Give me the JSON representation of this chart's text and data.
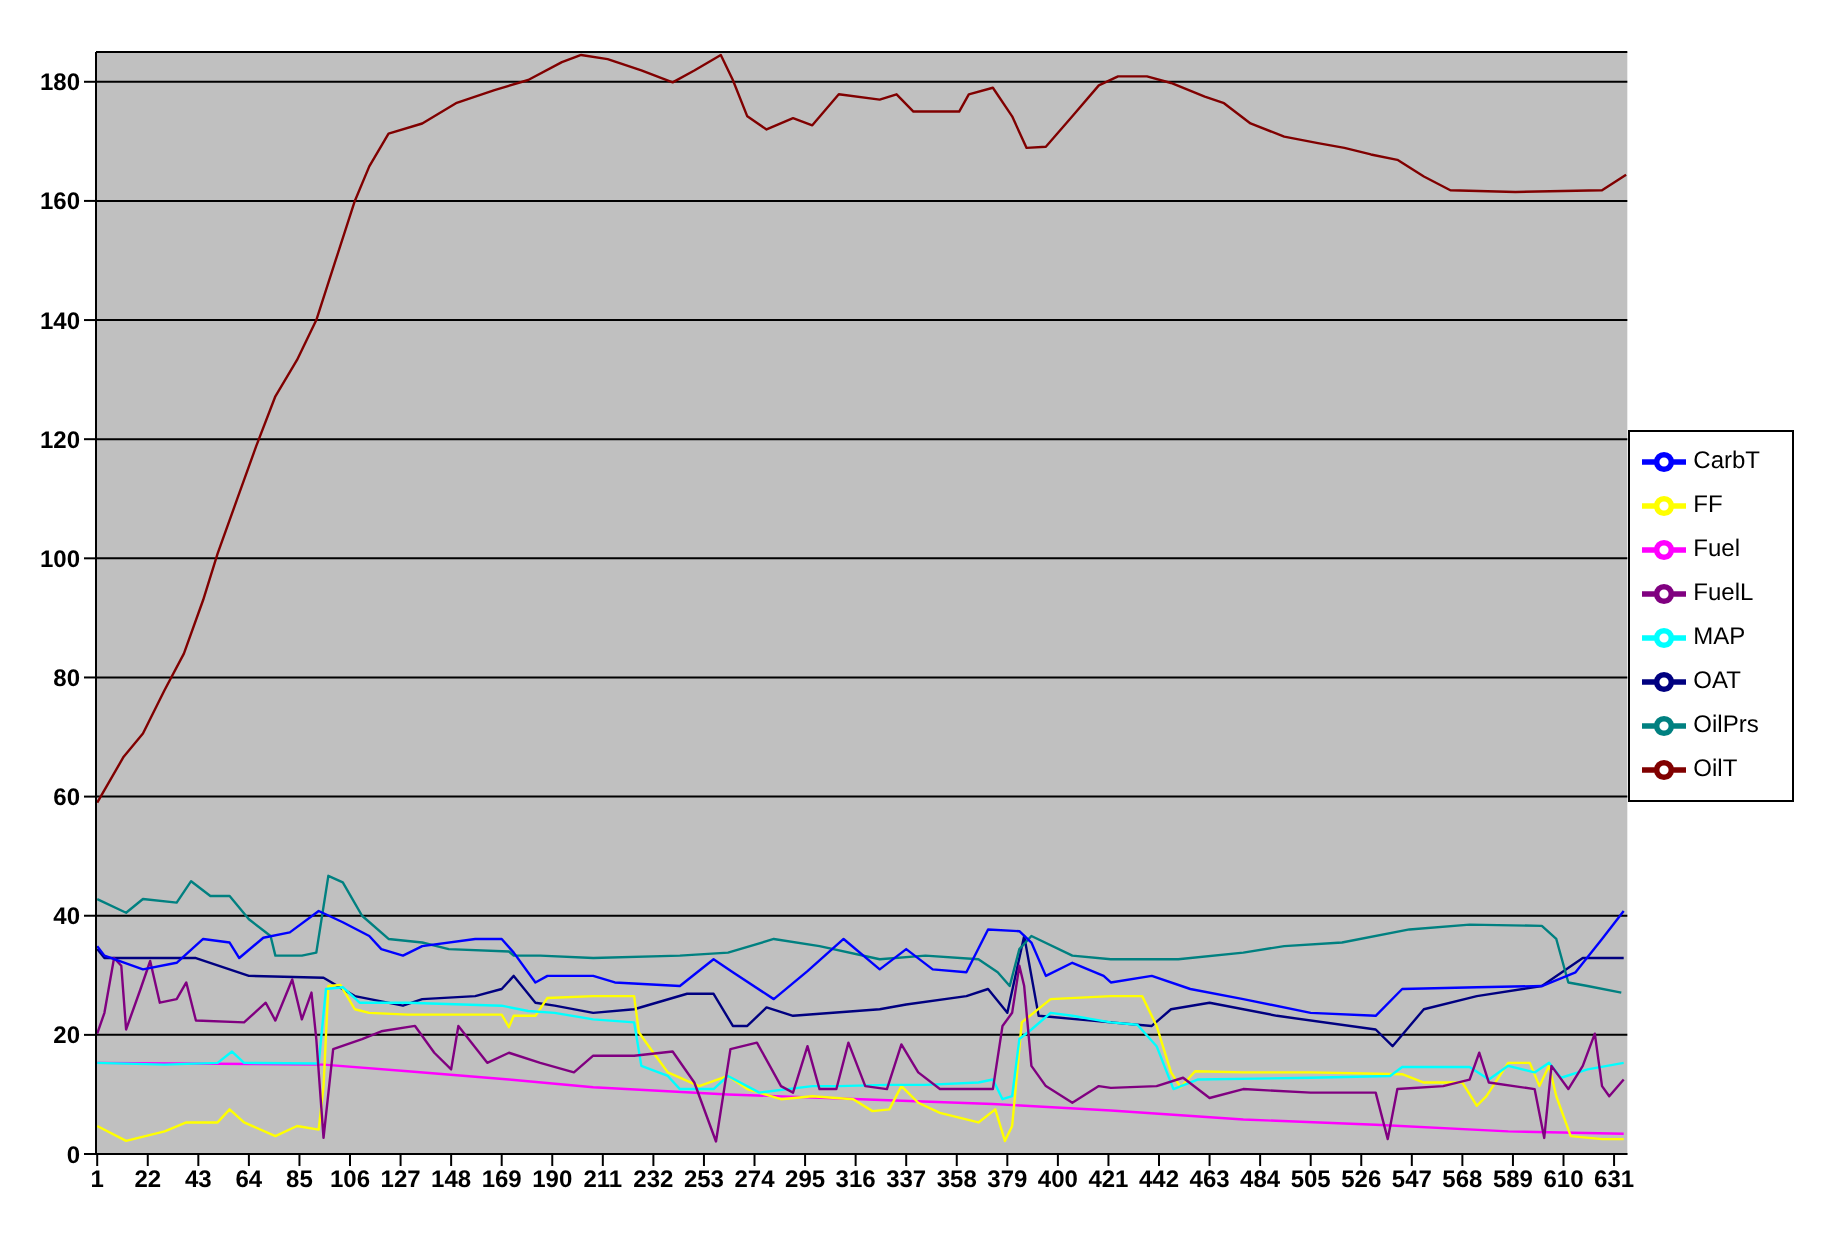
{
  "chart_data": {
    "type": "line",
    "xlim": [
      0.5,
      636.5
    ],
    "xticks": [
      1,
      22,
      43,
      64,
      85,
      106,
      127,
      148,
      169,
      190,
      211,
      232,
      253,
      274,
      295,
      316,
      337,
      358,
      379,
      400,
      421,
      442,
      463,
      484,
      505,
      526,
      547,
      568,
      589,
      610,
      631
    ],
    "ylim": [
      0,
      185
    ],
    "yticks": [
      0,
      20,
      40,
      60,
      80,
      100,
      120,
      140,
      160,
      180
    ],
    "grid": "y",
    "legend": "right",
    "marker": "none",
    "line_style": "solid",
    "series": [
      {
        "name": "OAT",
        "color": "#000080",
        "x": [
          1,
          4,
          42,
          64,
          95,
          108,
          128,
          136,
          158,
          169,
          174,
          183,
          191,
          207,
          224,
          246,
          257,
          265,
          271,
          279,
          290,
          326,
          337,
          362,
          371,
          379,
          386,
          392,
          422,
          439,
          447,
          463,
          491,
          532,
          539,
          552,
          574,
          601,
          618,
          635
        ],
        "values": [
          34.4,
          32.9,
          32.9,
          29.9,
          29.6,
          26.5,
          24.9,
          26,
          26.5,
          27.7,
          29.9,
          25.4,
          24.9,
          23.7,
          24.3,
          26.9,
          26.9,
          21.5,
          21.5,
          24.6,
          23.2,
          24.3,
          25.1,
          26.5,
          27.7,
          23.7,
          36.6,
          23.2,
          22.1,
          21.5,
          24.3,
          25.4,
          23.2,
          20.9,
          18.1,
          24.3,
          26.5,
          28.2,
          32.9,
          32.9
        ]
      },
      {
        "name": "Fuel",
        "color": "#ff00ff",
        "x": [
          1,
          64,
          95,
          130,
          172,
          207,
          263,
          318,
          373,
          422,
          477,
          532,
          587,
          635
        ],
        "values": [
          15.3,
          15.1,
          15,
          13.9,
          12.5,
          11.2,
          10,
          9.2,
          8.4,
          7.3,
          5.8,
          4.9,
          3.8,
          3.4
        ]
      },
      {
        "name": "FF",
        "color": "#ffff00",
        "x": [
          1,
          13,
          29,
          38,
          51,
          56,
          62,
          75,
          84,
          93,
          95,
          97,
          102,
          108,
          114,
          130,
          169,
          172,
          174,
          183,
          188,
          207,
          224,
          226,
          232,
          238,
          251,
          263,
          271,
          285,
          298,
          315,
          323,
          330,
          335,
          342,
          351,
          367,
          374,
          378,
          381,
          385,
          397,
          422,
          435,
          441,
          447,
          451,
          457,
          477,
          505,
          543,
          552,
          568,
          574,
          578,
          587,
          596,
          600,
          604,
          607,
          613,
          626,
          635
        ],
        "values": [
          4.7,
          2.2,
          3.8,
          5.3,
          5.3,
          7.5,
          5.3,
          3,
          4.7,
          4.1,
          11.4,
          28.2,
          28.4,
          24.3,
          23.7,
          23.4,
          23.4,
          21.3,
          23.2,
          23.2,
          26.2,
          26.5,
          26.5,
          20.4,
          17,
          13.7,
          11.4,
          13.1,
          10.9,
          9.2,
          9.7,
          9.2,
          7.2,
          7.5,
          11.4,
          8.6,
          6.9,
          5.3,
          7.5,
          2.2,
          4.7,
          22.1,
          26,
          26.5,
          26.5,
          21.5,
          13.7,
          11.2,
          13.9,
          13.7,
          13.7,
          13.4,
          12,
          12,
          8.1,
          9.7,
          15.3,
          15.3,
          11.4,
          14.8,
          9.7,
          3,
          2.5,
          2.5
        ]
      },
      {
        "name": "MAP",
        "color": "#00ffff",
        "x": [
          1,
          29,
          51,
          57,
          62,
          93,
          96,
          103,
          110,
          130,
          169,
          180,
          191,
          207,
          224,
          227,
          238,
          243,
          257,
          263,
          276,
          298,
          309,
          329,
          345,
          367,
          373,
          377,
          381,
          384,
          389,
          397,
          406,
          422,
          433,
          441,
          448,
          458,
          505,
          538,
          543,
          571,
          579,
          587,
          598,
          604,
          609,
          620,
          635
        ],
        "values": [
          15.3,
          15,
          15.3,
          17.2,
          15.3,
          15.2,
          27.7,
          28,
          25.4,
          25.4,
          24.9,
          24,
          23.7,
          22.6,
          22.1,
          14.8,
          13.1,
          10.9,
          10.9,
          13.1,
          10.3,
          11.4,
          11.4,
          11.6,
          11.6,
          12,
          12.5,
          9.2,
          9.7,
          19.3,
          20.9,
          23.7,
          23.2,
          22.1,
          21.7,
          18.1,
          10.9,
          12.5,
          12.8,
          13.1,
          14.6,
          14.6,
          12.5,
          14.8,
          13.7,
          15.3,
          12.8,
          14.2,
          15.3
        ]
      },
      {
        "name": "FuelL",
        "color": "#800080",
        "x": [
          1,
          4,
          8,
          11,
          13,
          19,
          23,
          27,
          34,
          38,
          42,
          62,
          71,
          75,
          82,
          86,
          90,
          92,
          95,
          99,
          111,
          119,
          133,
          141,
          148,
          151,
          163,
          172,
          185,
          199,
          207,
          224,
          240,
          249,
          258,
          264,
          275,
          285,
          290,
          296,
          301,
          308,
          313,
          320,
          329,
          335,
          342,
          351,
          373,
          377,
          381,
          384,
          386,
          389,
          395,
          406,
          417,
          422,
          441,
          452,
          463,
          477,
          505,
          532,
          537,
          541,
          560,
          571,
          575,
          579,
          598,
          602,
          605,
          612,
          618,
          623,
          626,
          629,
          635
        ],
        "values": [
          20.2,
          23.7,
          32.9,
          31.6,
          20.9,
          27.7,
          32.4,
          25.4,
          26,
          28.8,
          22.4,
          22.1,
          25.4,
          22.4,
          29.3,
          22.6,
          27.1,
          19.3,
          2.7,
          17.6,
          19.3,
          20.6,
          21.5,
          17,
          14.2,
          21.5,
          15.3,
          17,
          15.3,
          13.7,
          16.5,
          16.5,
          17.2,
          12,
          2.1,
          17.6,
          18.7,
          11.4,
          10.3,
          18.1,
          10.9,
          10.9,
          18.7,
          11.4,
          10.9,
          18.4,
          13.7,
          10.9,
          10.9,
          21.5,
          23.7,
          31.6,
          28.2,
          14.8,
          11.4,
          8.6,
          11.4,
          11.1,
          11.4,
          12.8,
          9.4,
          10.9,
          10.3,
          10.3,
          2.5,
          10.9,
          11.4,
          12.5,
          17,
          12,
          10.9,
          2.7,
          14.8,
          10.9,
          14.8,
          20.2,
          11.4,
          9.7,
          12.5
        ]
      },
      {
        "name": "OilT",
        "color": "#800000",
        "x": [
          1,
          12,
          20,
          29,
          37,
          45,
          51,
          59,
          67,
          75,
          84,
          92,
          100,
          108,
          114,
          122,
          136,
          150,
          166,
          180,
          194,
          202,
          213,
          227,
          240,
          249,
          260,
          265,
          271,
          279,
          290,
          298,
          309,
          326,
          333,
          340,
          359,
          363,
          373,
          381,
          387,
          395,
          406,
          417,
          425,
          437,
          447,
          461,
          469,
          480,
          494,
          508,
          519,
          530,
          541,
          552,
          563,
          590,
          626,
          636
        ],
        "values": [
          59,
          66.7,
          70.6,
          77.9,
          84,
          93,
          100.8,
          109.8,
          118.8,
          127.2,
          133.3,
          140,
          150,
          160,
          165.8,
          171.3,
          173,
          176.4,
          178.6,
          180.3,
          183.3,
          184.5,
          183.8,
          181.9,
          179.9,
          181.9,
          184.5,
          180.3,
          174.2,
          172,
          173.9,
          172.7,
          177.9,
          177,
          177.9,
          175,
          175,
          177.9,
          179,
          174.2,
          168.9,
          169.1,
          174.2,
          179.4,
          180.9,
          180.9,
          179.8,
          177.5,
          176.4,
          173,
          170.8,
          169.7,
          168.9,
          167.8,
          166.9,
          164.1,
          161.8,
          161.5,
          161.8,
          164.4
        ]
      },
      {
        "name": "OilPrs",
        "color": "#008080",
        "x": [
          1,
          13,
          20,
          34,
          40,
          48,
          56,
          64,
          73,
          75,
          86,
          92,
          97,
          103,
          111,
          122,
          136,
          147,
          172,
          174,
          185,
          207,
          243,
          263,
          282,
          301,
          326,
          345,
          367,
          375,
          380,
          384,
          389,
          406,
          422,
          450,
          477,
          494,
          518,
          546,
          571,
          601,
          607,
          612,
          620,
          634
        ],
        "values": [
          42.8,
          40.5,
          42.8,
          42.2,
          45.8,
          43.3,
          43.3,
          39.4,
          36.6,
          33.3,
          33.3,
          33.8,
          46.7,
          45.6,
          40,
          36.1,
          35.5,
          34.4,
          34,
          33.3,
          33.3,
          32.9,
          33.3,
          33.8,
          36.1,
          34.9,
          32.7,
          33.3,
          32.7,
          30.5,
          28.2,
          34.4,
          36.6,
          33.3,
          32.7,
          32.7,
          33.8,
          34.9,
          35.5,
          37.7,
          38.5,
          38.3,
          36.1,
          28.8,
          28.2,
          27.1
        ]
      },
      {
        "name": "CarbT",
        "color": "#0000ff",
        "x": [
          1,
          4,
          20,
          34,
          45,
          56,
          60,
          70,
          81,
          93,
          103,
          114,
          119,
          128,
          136,
          158,
          169,
          174,
          183,
          188,
          207,
          216,
          243,
          257,
          265,
          282,
          296,
          311,
          326,
          337,
          348,
          362,
          371,
          384,
          389,
          395,
          406,
          419,
          422,
          439,
          455,
          477,
          505,
          532,
          543,
          574,
          601,
          615,
          626,
          635
        ],
        "values": [
          34.9,
          33.3,
          31,
          32.1,
          36.1,
          35.5,
          32.9,
          36.3,
          37.2,
          40.8,
          38.9,
          36.6,
          34.4,
          33.3,
          34.9,
          36.1,
          36.1,
          33.8,
          28.8,
          29.9,
          29.9,
          28.8,
          28.2,
          32.7,
          30.5,
          26,
          30.7,
          36.1,
          31,
          34.4,
          31,
          30.5,
          37.7,
          37.4,
          35.5,
          29.9,
          32.1,
          29.9,
          28.8,
          29.9,
          27.7,
          26,
          23.7,
          23.2,
          27.7,
          28,
          28.2,
          30.5,
          36.1,
          40.8
        ]
      }
    ]
  }
}
